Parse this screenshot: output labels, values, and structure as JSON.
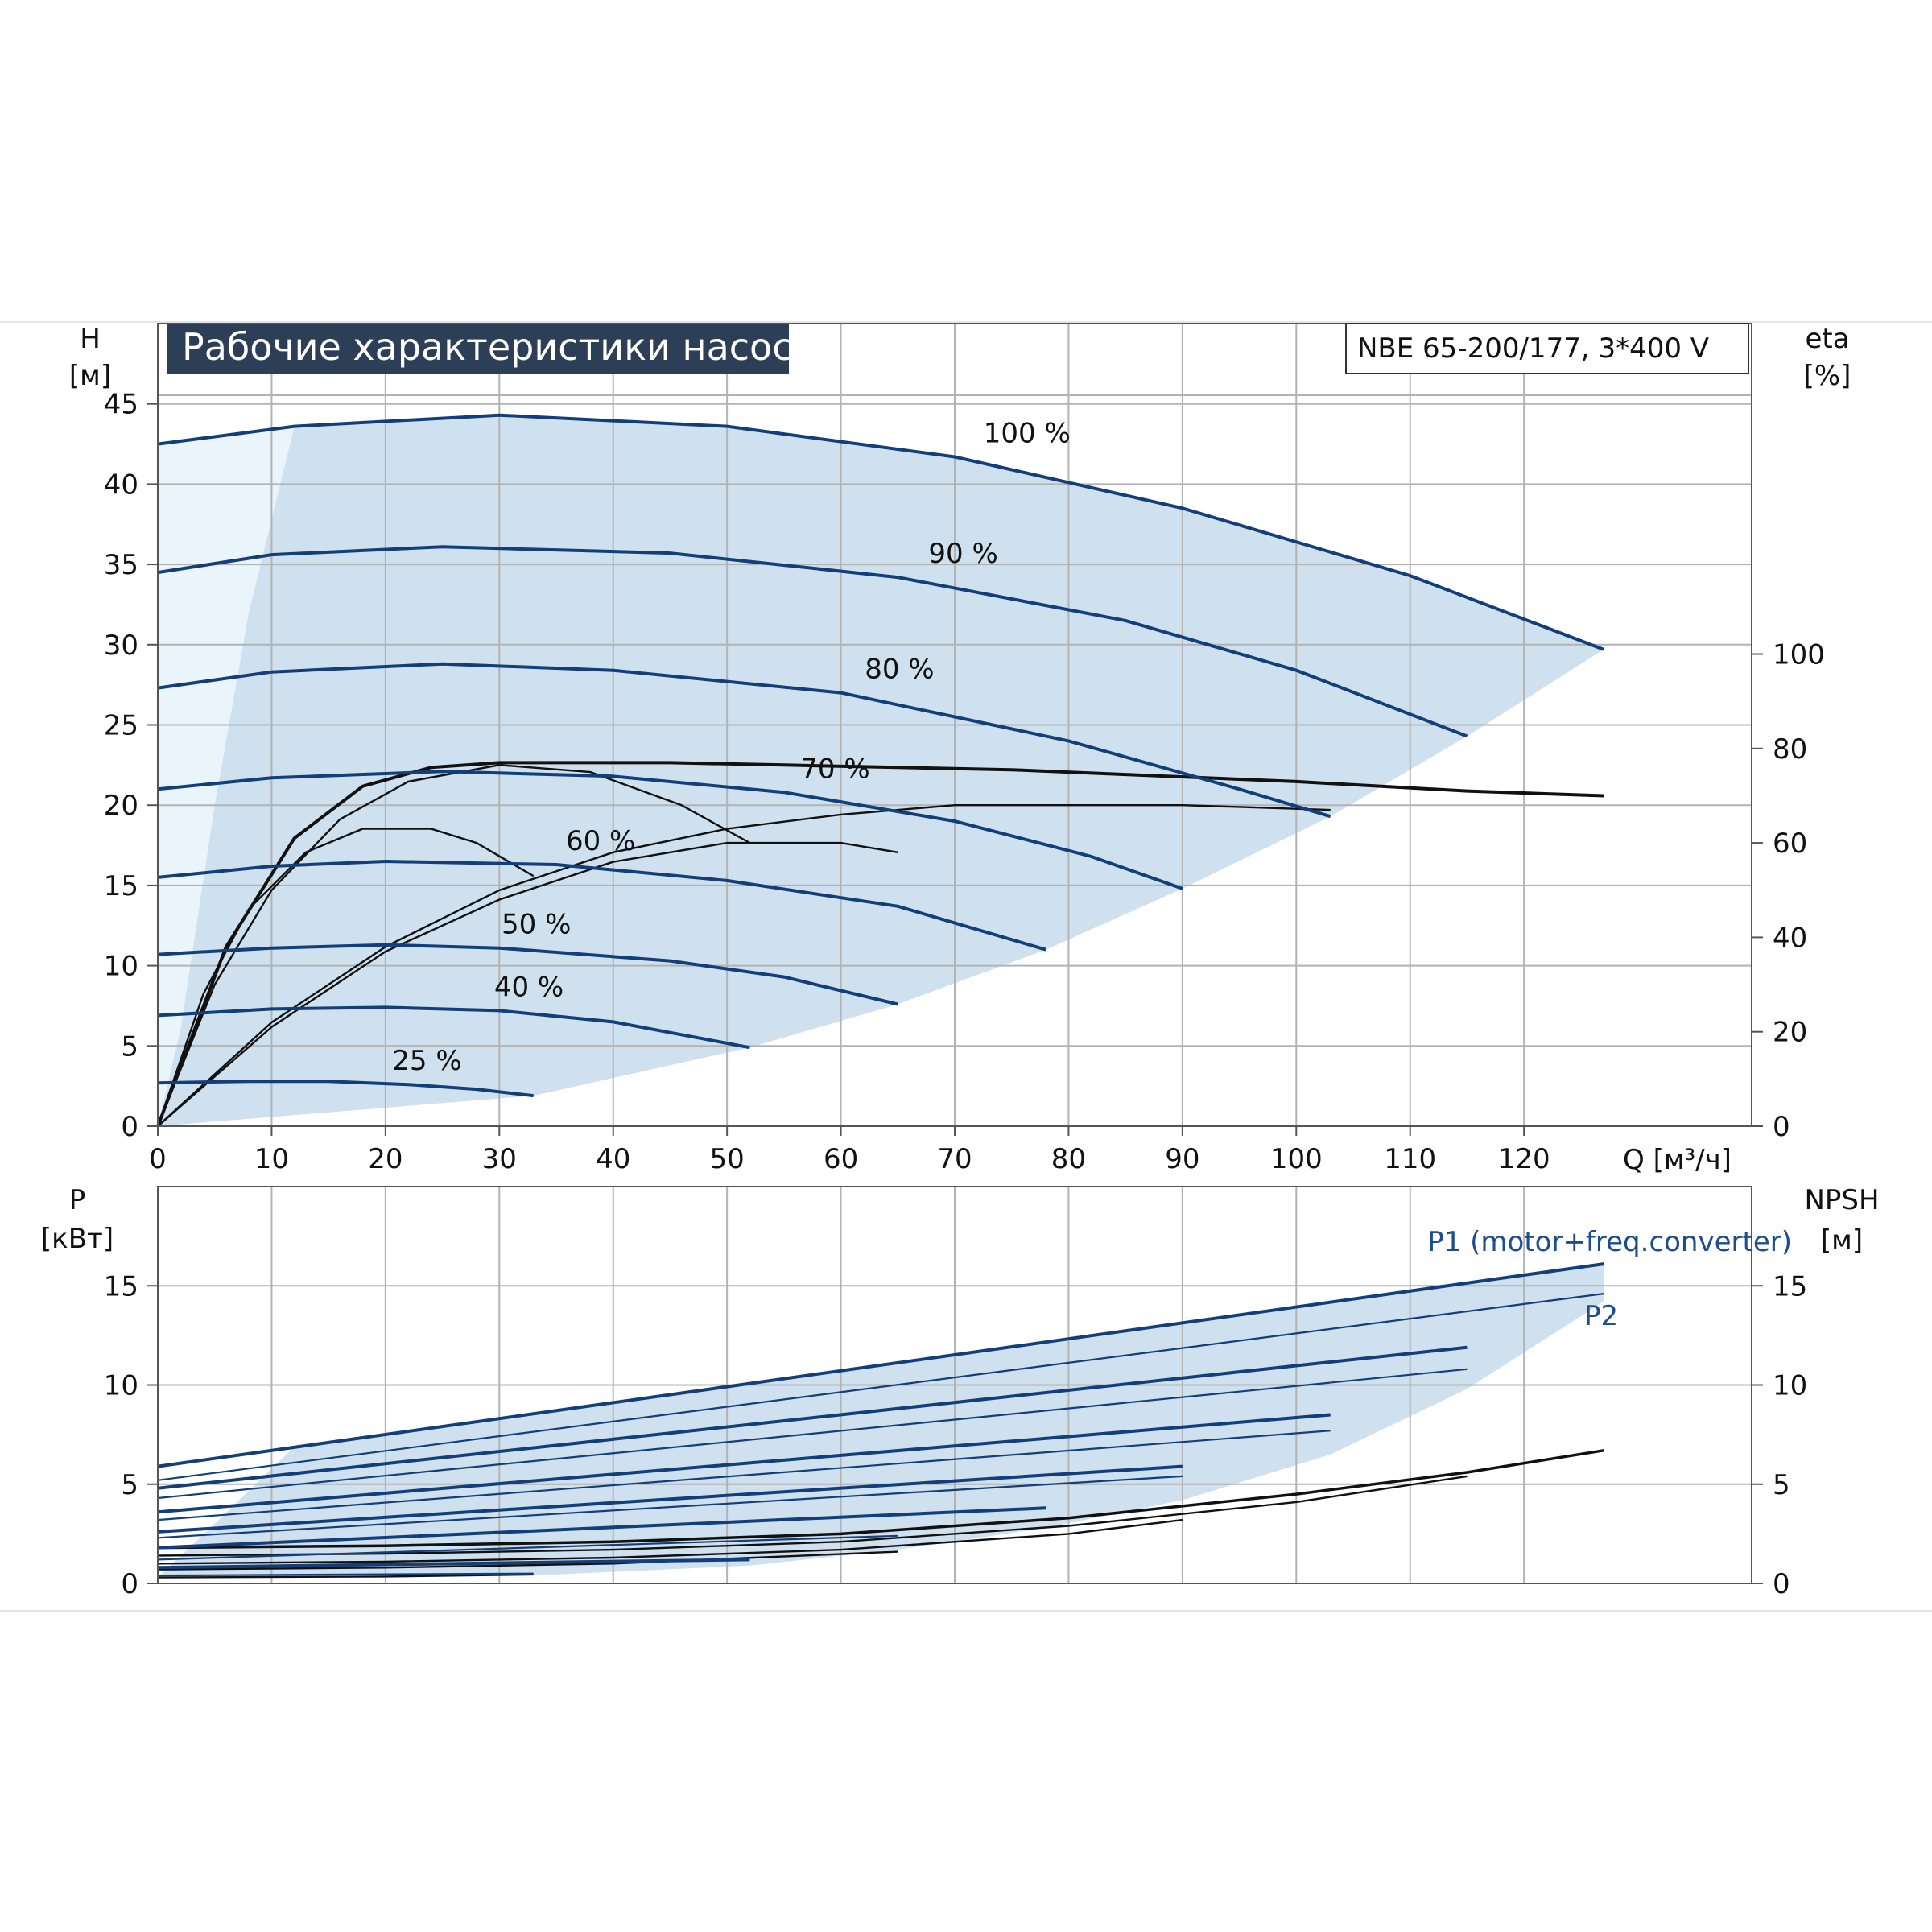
{
  "chart_data": [
    {
      "type": "line",
      "title": "Рабочие характеристики насоса",
      "model": "NBE 65-200/177, 3*400 V",
      "xlabel": "Q [м³/ч]",
      "ylabel_name": "H",
      "ylabel_unit": "[м]",
      "y2label_name": "eta",
      "y2label_unit": "[%]",
      "xlim": [
        0,
        140
      ],
      "ylim": [
        0,
        50
      ],
      "y2lim": [
        0,
        170
      ],
      "xticks": [
        0,
        10,
        20,
        30,
        40,
        50,
        60,
        70,
        80,
        90,
        100,
        110,
        120
      ],
      "yticks": [
        0,
        5,
        10,
        15,
        20,
        25,
        30,
        35,
        40,
        45
      ],
      "y2ticks": [
        0,
        20,
        40,
        60,
        80,
        100
      ],
      "grid": true,
      "series": [
        {
          "name": "100 %",
          "q_max": 127,
          "x": [
            0,
            12,
            30,
            50,
            70,
            90,
            110,
            127
          ],
          "y": [
            42.5,
            43.6,
            44.3,
            43.6,
            41.7,
            38.5,
            34.3,
            29.7
          ]
        },
        {
          "name": "90 %",
          "q_max": 115,
          "x": [
            0,
            10,
            25,
            45,
            65,
            85,
            100,
            115
          ],
          "y": [
            34.5,
            35.6,
            36.1,
            35.7,
            34.2,
            31.5,
            28.4,
            24.3
          ]
        },
        {
          "name": "80 %",
          "q_max": 103,
          "x": [
            0,
            10,
            25,
            40,
            60,
            80,
            95,
            103
          ],
          "y": [
            27.3,
            28.3,
            28.8,
            28.4,
            27.0,
            24.0,
            21.0,
            19.3
          ]
        },
        {
          "name": "70 %",
          "q_max": 90,
          "x": [
            0,
            10,
            25,
            40,
            55,
            70,
            82,
            90
          ],
          "y": [
            21.0,
            21.7,
            22.1,
            21.8,
            20.8,
            19.0,
            16.8,
            14.8
          ]
        },
        {
          "name": "60 %",
          "q_max": 78,
          "x": [
            0,
            10,
            20,
            35,
            50,
            65,
            78
          ],
          "y": [
            15.5,
            16.2,
            16.5,
            16.3,
            15.3,
            13.7,
            11.0
          ]
        },
        {
          "name": "50 %",
          "q_max": 65,
          "x": [
            0,
            10,
            20,
            30,
            45,
            55,
            65
          ],
          "y": [
            10.7,
            11.1,
            11.3,
            11.1,
            10.3,
            9.3,
            7.6
          ]
        },
        {
          "name": "40 %",
          "q_max": 52,
          "x": [
            0,
            10,
            20,
            30,
            40,
            52
          ],
          "y": [
            6.9,
            7.3,
            7.4,
            7.2,
            6.5,
            4.9
          ]
        },
        {
          "name": "25 %",
          "q_max": 33,
          "x": [
            0,
            8,
            15,
            22,
            28,
            33
          ],
          "y": [
            2.7,
            2.8,
            2.8,
            2.6,
            2.3,
            1.9
          ]
        }
      ],
      "envelope": {
        "top": {
          "x": [
            0,
            12,
            30,
            50,
            70,
            90,
            110,
            127
          ],
          "y": [
            42.5,
            43.6,
            44.3,
            43.6,
            41.7,
            38.5,
            34.3,
            29.7
          ]
        },
        "bottom": {
          "x": [
            0,
            33,
            52,
            65,
            78,
            90,
            103,
            115,
            127
          ],
          "y": [
            0,
            1.9,
            4.9,
            7.6,
            11.0,
            14.8,
            19.3,
            24.3,
            29.7
          ]
        },
        "left": {
          "x": [
            0,
            2,
            5,
            8,
            12
          ],
          "y": [
            0,
            6,
            20,
            32,
            43.6
          ]
        }
      },
      "efficiency_curves_eta": [
        {
          "x": [
            0,
            6,
            12,
            18,
            24,
            30,
            36,
            45,
            55,
            65,
            75,
            85,
            100,
            115,
            127
          ],
          "y": [
            0,
            38,
            61,
            72,
            76,
            77,
            77,
            77,
            76.5,
            76,
            75.5,
            74.5,
            73,
            71,
            70
          ]
        },
        {
          "x": [
            0,
            5,
            10,
            16,
            22,
            30,
            38,
            46,
            52
          ],
          "y": [
            0,
            30,
            50,
            65,
            73,
            76.5,
            75,
            68,
            60
          ]
        },
        {
          "x": [
            0,
            4,
            8,
            13,
            18,
            24,
            28,
            33
          ],
          "y": [
            0,
            28,
            46,
            58,
            63,
            63,
            60,
            53
          ]
        },
        {
          "x": [
            0,
            10,
            20,
            30,
            40,
            50,
            60,
            70,
            80,
            90,
            103
          ],
          "y": [
            0,
            22,
            38,
            50,
            58,
            63,
            66,
            68,
            68,
            68,
            67
          ]
        },
        {
          "x": [
            0,
            10,
            20,
            30,
            40,
            50,
            60,
            65
          ],
          "y": [
            0,
            21,
            37,
            48,
            56,
            60,
            60,
            58
          ]
        }
      ]
    },
    {
      "type": "line",
      "ylabel_name": "P",
      "ylabel_unit": "[кВт]",
      "y2label_name": "NPSH",
      "y2label_unit": "[м]",
      "xlim": [
        0,
        140
      ],
      "ylim": [
        0,
        20
      ],
      "yticks": [
        0,
        5,
        10,
        15
      ],
      "y2ticks": [
        0,
        5,
        10,
        15
      ],
      "grid": true,
      "label_p1": "P1 (motor+freq.converter)",
      "label_p2": "P2",
      "series": [
        {
          "name": "P1 (motor+freq.converter)",
          "x": [
            0,
            127
          ],
          "y": [
            5.9,
            16.1
          ]
        },
        {
          "name": "P2",
          "x": [
            0,
            127
          ],
          "y": [
            5.2,
            14.6
          ]
        },
        {
          "x": [
            0,
            115
          ],
          "y": [
            4.8,
            11.9
          ]
        },
        {
          "x": [
            0,
            115
          ],
          "y": [
            4.3,
            10.8
          ]
        },
        {
          "x": [
            0,
            103
          ],
          "y": [
            3.6,
            8.5
          ]
        },
        {
          "x": [
            0,
            103
          ],
          "y": [
            3.2,
            7.7
          ]
        },
        {
          "x": [
            0,
            90
          ],
          "y": [
            2.6,
            5.9
          ]
        },
        {
          "x": [
            0,
            90
          ],
          "y": [
            2.3,
            5.4
          ]
        },
        {
          "x": [
            0,
            78
          ],
          "y": [
            1.8,
            3.8
          ]
        },
        {
          "x": [
            0,
            65
          ],
          "y": [
            1.2,
            2.4
          ]
        },
        {
          "x": [
            0,
            52
          ],
          "y": [
            0.8,
            1.2
          ]
        },
        {
          "x": [
            0,
            33
          ],
          "y": [
            0.4,
            0.5
          ]
        }
      ],
      "envelope": {
        "top": {
          "x": [
            0,
            127
          ],
          "y": [
            5.9,
            16.1
          ]
        },
        "bottom": {
          "x": [
            0,
            33,
            52,
            65,
            78,
            90,
            103,
            115,
            127
          ],
          "y": [
            0.3,
            0.4,
            0.9,
            1.7,
            2.8,
            4.2,
            6.5,
            9.8,
            14.2
          ]
        },
        "left": {
          "x": [
            0,
            5,
            12
          ],
          "y": [
            0.3,
            3.0,
            6.9
          ]
        }
      },
      "npsh_curves": [
        {
          "x": [
            0,
            20,
            40,
            60,
            80,
            100,
            115,
            127
          ],
          "y": [
            1.8,
            1.9,
            2.1,
            2.5,
            3.3,
            4.5,
            5.6,
            6.7
          ]
        },
        {
          "x": [
            0,
            20,
            40,
            60,
            80,
            100,
            115
          ],
          "y": [
            1.4,
            1.5,
            1.7,
            2.1,
            2.9,
            4.1,
            5.4
          ]
        },
        {
          "x": [
            0,
            20,
            40,
            60,
            80,
            90
          ],
          "y": [
            1.0,
            1.1,
            1.3,
            1.7,
            2.5,
            3.2
          ]
        },
        {
          "x": [
            0,
            20,
            40,
            65
          ],
          "y": [
            0.7,
            0.8,
            1.0,
            1.6
          ]
        },
        {
          "x": [
            0,
            20,
            33
          ],
          "y": [
            0.3,
            0.35,
            0.45
          ]
        }
      ]
    }
  ]
}
